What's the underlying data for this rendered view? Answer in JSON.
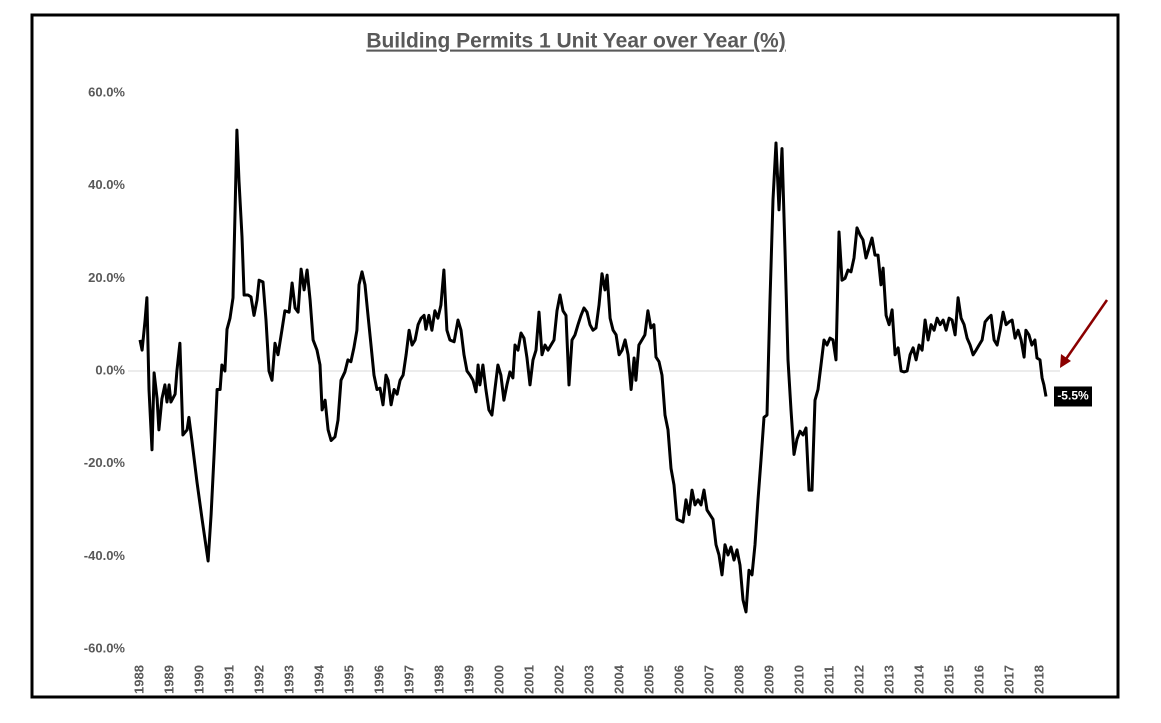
{
  "chart_data": {
    "type": "line",
    "title": "Building Permits 1 Unit Year over Year (%)",
    "annotation": "-5.5%",
    "color": "#000000",
    "zero_line": true,
    "xlim": [
      1987.6,
      2020.0
    ],
    "ylim": [
      -60,
      60
    ],
    "yticks": [
      {
        "value": -60,
        "label": "-60.0%"
      },
      {
        "value": -40,
        "label": "-40.0%"
      },
      {
        "value": -20,
        "label": "-20.0%"
      },
      {
        "value": 0,
        "label": "0.0%"
      },
      {
        "value": 20,
        "label": "20.0%"
      },
      {
        "value": 40,
        "label": "40.0%"
      },
      {
        "value": 60,
        "label": "60.0%"
      }
    ],
    "xticks": [
      1988,
      1989,
      1990,
      1991,
      1992,
      1993,
      1994,
      1995,
      1996,
      1997,
      1998,
      1999,
      2000,
      2001,
      2002,
      2003,
      2004,
      2005,
      2006,
      2007,
      2008,
      2009,
      2010,
      2011,
      2012,
      2013,
      2014,
      2015,
      2016,
      2017,
      2018
    ],
    "x": [
      1988.0,
      1988.07,
      1988.17,
      1988.23,
      1988.3,
      1988.4,
      1988.47,
      1988.57,
      1988.63,
      1988.73,
      1988.83,
      1988.9,
      1988.97,
      1989.03,
      1989.17,
      1989.23,
      1989.33,
      1989.43,
      1989.57,
      1989.63,
      1989.73,
      1989.9,
      1990.07,
      1990.17,
      1990.27,
      1990.37,
      1990.47,
      1990.57,
      1990.67,
      1990.73,
      1990.83,
      1990.9,
      1991.0,
      1991.1,
      1991.17,
      1991.23,
      1991.3,
      1991.4,
      1991.47,
      1991.6,
      1991.7,
      1991.8,
      1991.9,
      1991.97,
      1992.1,
      1992.2,
      1992.3,
      1992.4,
      1992.5,
      1992.6,
      1992.73,
      1992.83,
      1992.97,
      1993.07,
      1993.17,
      1993.27,
      1993.37,
      1993.47,
      1993.57,
      1993.67,
      1993.77,
      1993.9,
      1994.0,
      1994.07,
      1994.17,
      1994.27,
      1994.37,
      1994.5,
      1994.6,
      1994.7,
      1994.83,
      1994.93,
      1995.03,
      1995.13,
      1995.23,
      1995.3,
      1995.4,
      1995.5,
      1995.6,
      1995.7,
      1995.8,
      1995.9,
      1996.0,
      1996.1,
      1996.2,
      1996.27,
      1996.37,
      1996.47,
      1996.57,
      1996.67,
      1996.77,
      1996.87,
      1996.97,
      1997.07,
      1997.17,
      1997.27,
      1997.37,
      1997.47,
      1997.53,
      1997.63,
      1997.73,
      1997.83,
      1997.93,
      1998.03,
      1998.13,
      1998.23,
      1998.33,
      1998.47,
      1998.6,
      1998.7,
      1998.8,
      1998.9,
      1999.0,
      1999.1,
      1999.2,
      1999.27,
      1999.33,
      1999.43,
      1999.53,
      1999.63,
      1999.73,
      1999.83,
      1999.93,
      2000.03,
      2000.13,
      2000.23,
      2000.33,
      2000.43,
      2000.5,
      2000.6,
      2000.7,
      2000.8,
      2000.9,
      2001.0,
      2001.1,
      2001.2,
      2001.3,
      2001.4,
      2001.5,
      2001.6,
      2001.7,
      2001.8,
      2001.9,
      2002.0,
      2002.1,
      2002.2,
      2002.3,
      2002.4,
      2002.5,
      2002.6,
      2002.7,
      2002.8,
      2002.9,
      2003.0,
      2003.1,
      2003.2,
      2003.3,
      2003.4,
      2003.5,
      2003.57,
      2003.67,
      2003.77,
      2003.87,
      2003.97,
      2004.07,
      2004.17,
      2004.27,
      2004.37,
      2004.47,
      2004.53,
      2004.63,
      2004.73,
      2004.83,
      2004.93,
      2005.03,
      2005.13,
      2005.2,
      2005.3,
      2005.4,
      2005.5,
      2005.6,
      2005.7,
      2005.8,
      2005.9,
      2006.1,
      2006.2,
      2006.3,
      2006.4,
      2006.5,
      2006.6,
      2006.7,
      2006.8,
      2006.9,
      2007.0,
      2007.1,
      2007.2,
      2007.3,
      2007.4,
      2007.5,
      2007.6,
      2007.7,
      2007.8,
      2007.9,
      2008.0,
      2008.1,
      2008.2,
      2008.3,
      2008.4,
      2008.5,
      2008.6,
      2008.7,
      2008.8,
      2008.9,
      2009.0,
      2009.1,
      2009.2,
      2009.3,
      2009.4,
      2009.5,
      2009.6,
      2009.7,
      2009.8,
      2009.9,
      2010.0,
      2010.1,
      2010.2,
      2010.3,
      2010.4,
      2010.5,
      2010.6,
      2010.7,
      2010.8,
      2010.9,
      2011.0,
      2011.1,
      2011.2,
      2011.3,
      2011.4,
      2011.5,
      2011.6,
      2011.7,
      2011.8,
      2011.9,
      2012.0,
      2012.1,
      2012.2,
      2012.3,
      2012.4,
      2012.5,
      2012.6,
      2012.7,
      2012.77,
      2012.87,
      2012.97,
      2013.07,
      2013.17,
      2013.27,
      2013.37,
      2013.47,
      2013.57,
      2013.67,
      2013.77,
      2013.87,
      2013.97,
      2014.07,
      2014.17,
      2014.27,
      2014.37,
      2014.47,
      2014.57,
      2014.67,
      2014.77,
      2014.87,
      2014.97,
      2015.07,
      2015.17,
      2015.27,
      2015.37,
      2015.47,
      2015.57,
      2015.67,
      2015.77,
      2015.87,
      2015.97,
      2016.07,
      2016.17,
      2016.27,
      2016.37,
      2016.47,
      2016.57,
      2016.67,
      2016.77,
      2016.87,
      2016.97,
      2017.07,
      2017.17,
      2017.27,
      2017.37,
      2017.47,
      2017.53,
      2017.63,
      2017.73,
      2017.83,
      2017.9,
      2018.0,
      2018.07,
      2018.13,
      2018.2
    ],
    "values": [
      6.7,
      4.5,
      11,
      15.8,
      -4,
      -17,
      -0.4,
      -6,
      -12.7,
      -6,
      -3,
      -6.7,
      -3,
      -6.7,
      -5,
      0,
      6,
      -13.8,
      -12.7,
      -10,
      -15,
      -24,
      -32,
      -36.5,
      -41,
      -31,
      -18,
      -4,
      -4,
      1.3,
      0,
      9,
      11.4,
      15.8,
      34.8,
      52,
      41,
      29,
      16.4,
      16.4,
      16,
      12,
      15.3,
      19.6,
      19.2,
      11,
      0,
      -2,
      6,
      3.5,
      8.8,
      13,
      12.7,
      19,
      13.6,
      12.7,
      22,
      17.5,
      21.8,
      15.3,
      6.7,
      4.5,
      1.3,
      -8.4,
      -6.3,
      -12.7,
      -15,
      -14.2,
      -10.6,
      -2,
      -0.2,
      2.4,
      2,
      5,
      8.8,
      18.6,
      21.4,
      18.6,
      12,
      5.6,
      -0.9,
      -4,
      -3.7,
      -7.3,
      -0.9,
      -2,
      -7.3,
      -4,
      -5,
      -2,
      -0.9,
      3.5,
      8.8,
      5.6,
      6.7,
      10,
      11.4,
      12,
      9,
      12,
      8.8,
      13,
      11.4,
      14.2,
      21.8,
      8.8,
      6.7,
      6.3,
      11,
      8.8,
      3.5,
      0,
      -0.9,
      -2,
      -4.5,
      1.3,
      -3,
      1.3,
      -4,
      -8.4,
      -9.5,
      -4,
      1.3,
      -0.9,
      -6.3,
      -3,
      -0.2,
      -1.5,
      5.6,
      4.5,
      8.2,
      7.1,
      2.8,
      -3,
      2.4,
      4.5,
      12.7,
      3.5,
      5.6,
      4.5,
      5.6,
      6.7,
      13,
      16.4,
      13,
      12,
      -3,
      6.7,
      7.8,
      10,
      12,
      13.6,
      12.7,
      10,
      8.8,
      9.3,
      14.2,
      21,
      17.5,
      20.7,
      11.4,
      8.8,
      7.8,
      3.5,
      4.5,
      6.7,
      3.5,
      -4,
      2.8,
      -2,
      5.6,
      6.7,
      7.8,
      13,
      9.3,
      10,
      3,
      2,
      -0.9,
      -9.5,
      -12.7,
      -21,
      -24.6,
      -32,
      -32.6,
      -27.8,
      -31,
      -25.7,
      -28.9,
      -27.8,
      -28.9,
      -25.7,
      -30,
      -31,
      -32,
      -37.5,
      -39.7,
      -44,
      -37.5,
      -39.7,
      -38,
      -40.8,
      -38.6,
      -41.9,
      -49.4,
      -52,
      -43,
      -44,
      -37.5,
      -27.8,
      -19.2,
      -10,
      -9.5,
      15.3,
      37,
      49.2,
      34.8,
      48,
      26,
      2.4,
      -8.4,
      -18,
      -14.7,
      -13,
      -13.8,
      -12.3,
      -25.7,
      -25.7,
      -6.3,
      -4,
      1.3,
      6.7,
      5.6,
      7.1,
      6.7,
      2.4,
      30,
      19.6,
      20,
      21.8,
      21.4,
      24.4,
      30.9,
      29.4,
      28.3,
      24.4,
      26.5,
      28.7,
      25,
      25,
      18.6,
      22.2,
      12,
      10,
      13.2,
      3.5,
      5,
      0,
      -0.2,
      0,
      3.5,
      5,
      2.4,
      5.6,
      4.5,
      11,
      6.7,
      10,
      8.8,
      11.4,
      10,
      11,
      8.8,
      11.4,
      11,
      7.8,
      15.8,
      11.4,
      10,
      7.1,
      5.6,
      3.5,
      4.5,
      5.6,
      6.7,
      10.6,
      11.4,
      12,
      6.7,
      5.6,
      8.8,
      12.7,
      10,
      10.6,
      11,
      7.1,
      8.8,
      6.7,
      3,
      8.8,
      7.8,
      5.6,
      6.7,
      2.8,
      2.4,
      -1.5,
      -3,
      -5.5
    ]
  }
}
